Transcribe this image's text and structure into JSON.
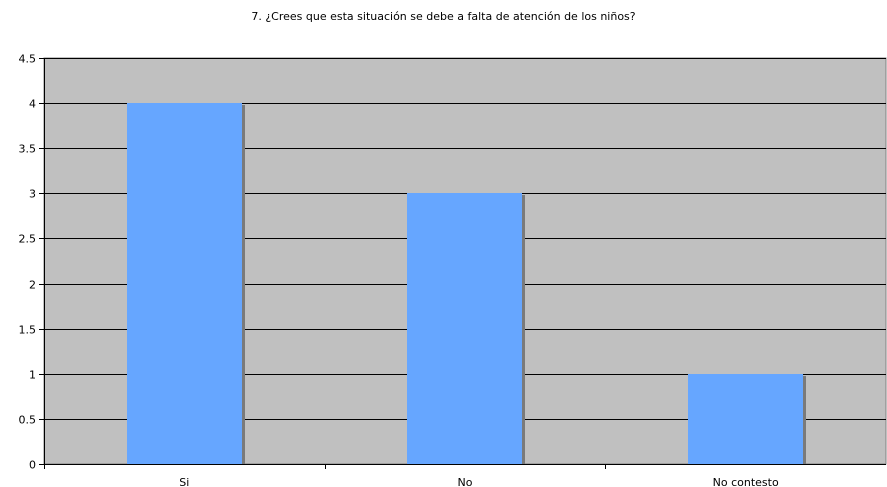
{
  "chart_data": {
    "type": "bar",
    "title": "7. ¿Crees que esta situación se debe a falta de atención de los niños?",
    "categories": [
      "Si",
      "No",
      "No contesto"
    ],
    "values": [
      4,
      3,
      1
    ],
    "ylim": [
      0,
      4.5
    ],
    "yticks": [
      "0",
      "0.5",
      "1",
      "1.5",
      "2",
      "2.5",
      "3",
      "3.5",
      "4",
      "4.5"
    ],
    "xlabel": "",
    "ylabel": "",
    "grid": true,
    "legend": "none",
    "colors": {
      "bar": "#66A6FF",
      "bar_shadow": "#7A7A7A",
      "plot_background": "#C0C0C0",
      "gridline": "#000000"
    }
  }
}
